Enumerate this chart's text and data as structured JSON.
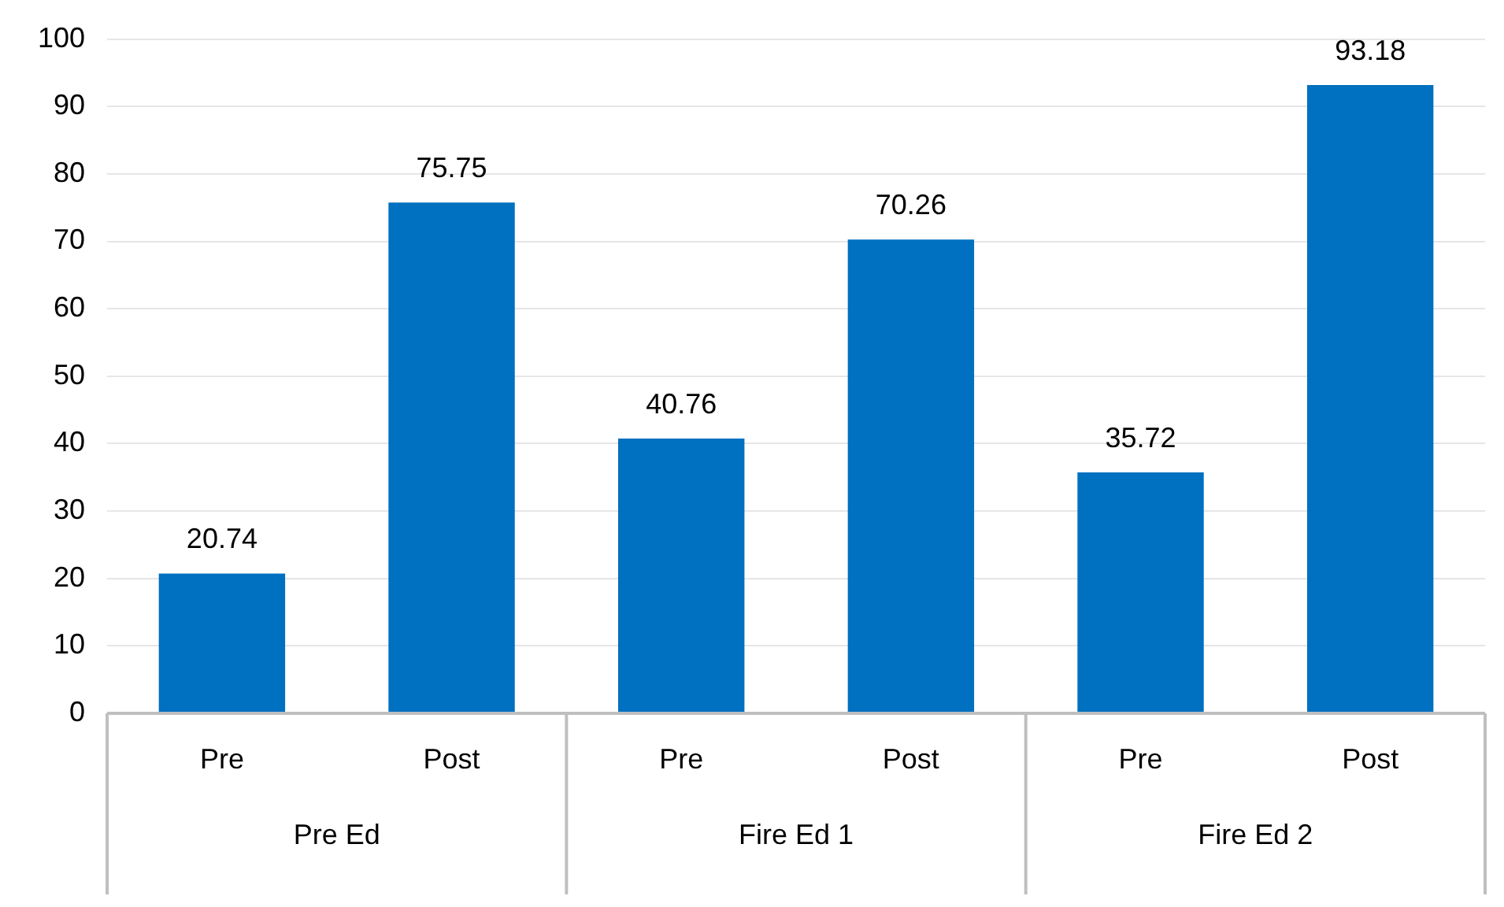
{
  "chart_data": {
    "type": "bar",
    "categories": [
      "Pre",
      "Post",
      "Pre",
      "Post",
      "Pre",
      "Post"
    ],
    "values": [
      20.74,
      75.75,
      40.76,
      70.26,
      35.72,
      93.18
    ],
    "color": "#0070c0",
    "ylim": [
      0,
      100
    ],
    "yticks": [
      0,
      10,
      20,
      30,
      40,
      50,
      60,
      70,
      80,
      90,
      100
    ],
    "grid": "y",
    "data_labels": true,
    "annotations": [
      "Pre Ed",
      "Fire Ed 1",
      "Fire Ed 2"
    ]
  }
}
